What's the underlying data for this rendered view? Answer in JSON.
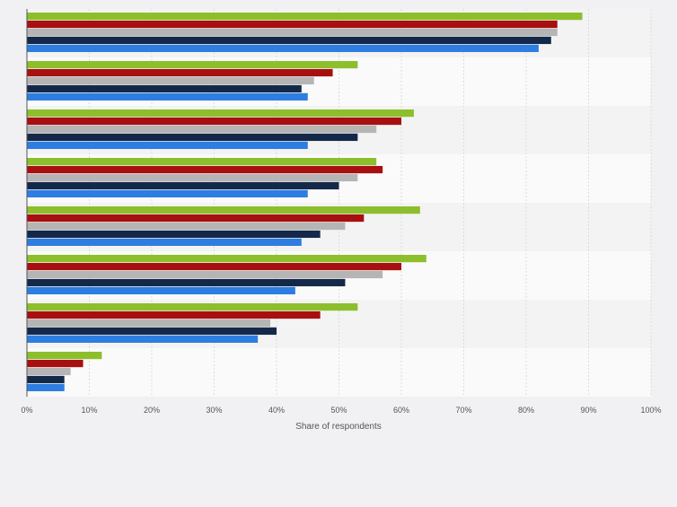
{
  "chart_data": {
    "type": "bar",
    "orientation": "horizontal",
    "title": "",
    "xlabel": "Share of respondents",
    "ylabel": "",
    "xlim": [
      0,
      100
    ],
    "x_ticks": [
      0,
      10,
      20,
      30,
      40,
      50,
      60,
      70,
      80,
      90,
      100
    ],
    "x_tick_labels": [
      "0%",
      "10%",
      "20%",
      "30%",
      "40%",
      "50%",
      "60%",
      "70%",
      "80%",
      "90%",
      "100%"
    ],
    "grid": true,
    "legend": "none",
    "categories": [
      "",
      "",
      "",
      "",
      "",
      "",
      "",
      ""
    ],
    "series": [
      {
        "name": "",
        "color": "#8cbf2b",
        "values": [
          89,
          53,
          62,
          56,
          63,
          64,
          53,
          12
        ]
      },
      {
        "name": "",
        "color": "#a80f10",
        "values": [
          85,
          49,
          60,
          57,
          54,
          60,
          47,
          9
        ]
      },
      {
        "name": "",
        "color": "#b5b5b5",
        "values": [
          85,
          46,
          56,
          53,
          51,
          57,
          39,
          7
        ]
      },
      {
        "name": "",
        "color": "#14294a",
        "values": [
          84,
          44,
          53,
          50,
          47,
          51,
          40,
          6
        ]
      },
      {
        "name": "",
        "color": "#2e7de0",
        "values": [
          82,
          45,
          45,
          45,
          44,
          43,
          37,
          6
        ]
      }
    ]
  }
}
